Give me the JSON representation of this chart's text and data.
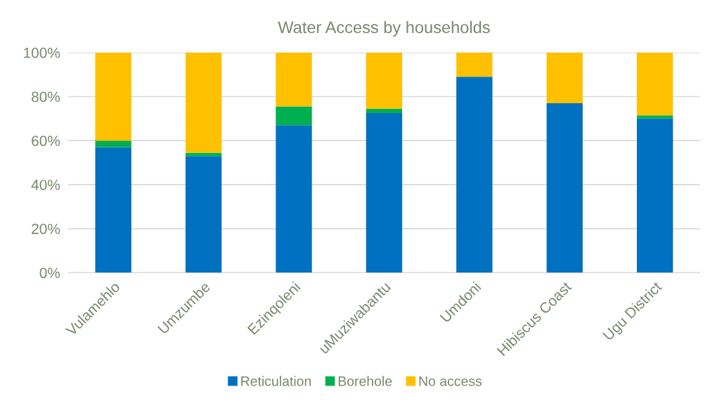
{
  "chart_data": {
    "type": "bar",
    "stacked": true,
    "title": "Water Access by households",
    "categories": [
      "Vulamehlo",
      "Umzumbe",
      "Ezinqoleni",
      "uMuziwabantu",
      "Umdoni",
      "Hibiscus Coast",
      "Ugu District"
    ],
    "series": [
      {
        "name": "Reticulation",
        "color": "#0070c0",
        "values": [
          57,
          53,
          67,
          72.5,
          89,
          77,
          70
        ]
      },
      {
        "name": "Borehole",
        "color": "#00b050",
        "values": [
          3,
          1.5,
          8.5,
          2,
          0,
          0,
          1.5
        ]
      },
      {
        "name": "No access",
        "color": "#ffc000",
        "values": [
          40,
          45.5,
          24.5,
          25.5,
          11,
          23,
          28.5
        ]
      }
    ],
    "ylim": [
      0,
      100
    ],
    "yticks": [
      {
        "value": 0,
        "label": "0%"
      },
      {
        "value": 20,
        "label": "20%"
      },
      {
        "value": 40,
        "label": "40%"
      },
      {
        "value": 60,
        "label": "60%"
      },
      {
        "value": 80,
        "label": "80%"
      },
      {
        "value": 100,
        "label": "100%"
      }
    ],
    "grid": "y",
    "legend": "bottom"
  }
}
